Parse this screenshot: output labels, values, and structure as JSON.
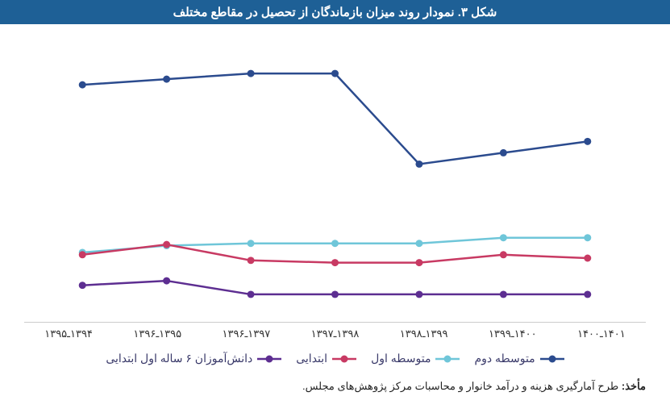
{
  "title": "شکل ۳. نمودار روند میزان بازماندگان از تحصیل در مقاطع مختلف",
  "title_bg": "#1e6096",
  "title_color": "#ffffff",
  "title_fontsize": 15,
  "source_label": "مأخذ:",
  "source_text": "طرح آمارگیری هزینه و درآمد خانوار و محاسبات مرکز پژوهش‌های مجلس.",
  "chart": {
    "type": "line",
    "background_color": "#ffffff",
    "grid_color": "#e5e5e5",
    "axis_color": "#bfbfbf",
    "ylim": [
      0,
      24
    ],
    "x_categories": [
      "۱۳۹۴ـ۱۳۹۵",
      "۱۳۹۵ـ۱۳۹۶",
      "۱۳۹۷ـ۱۳۹۶",
      "۱۳۹۸ـ۱۳۹۷",
      "۱۳۹۹ـ۱۳۹۸",
      "۱۴۰۰ـ۱۳۹۹",
      "۱۴۰۱ـ۱۴۰۰"
    ],
    "x_label_fontsize": 13,
    "marker_radius": 4.5,
    "line_width": 2.5,
    "series": [
      {
        "id": "secondary2",
        "label": "متوسطه دوم",
        "color": "#2b4b8e",
        "values": [
          15.5,
          14.5,
          13.5,
          21.5,
          21.5,
          21.0,
          20.5
        ]
      },
      {
        "id": "secondary1",
        "label": "متوسطه اول",
        "color": "#6fc6d9",
        "values": [
          7.0,
          7.0,
          6.5,
          6.5,
          6.5,
          6.3,
          5.7
        ]
      },
      {
        "id": "primary",
        "label": "ابتدایی",
        "color": "#c83a63",
        "values": [
          5.2,
          5.5,
          4.8,
          4.8,
          5.0,
          6.4,
          5.5
        ]
      },
      {
        "id": "students6",
        "label": "دانش‌آموزان ۶ ساله اول ابتدایی",
        "color": "#5d2e91",
        "values": [
          2.0,
          2.0,
          2.0,
          2.0,
          2.0,
          3.2,
          2.8
        ]
      }
    ],
    "legend_order": [
      "secondary2",
      "secondary1",
      "primary",
      "students6"
    ],
    "legend_fontsize": 14,
    "legend_color": "#3a3a6a"
  }
}
